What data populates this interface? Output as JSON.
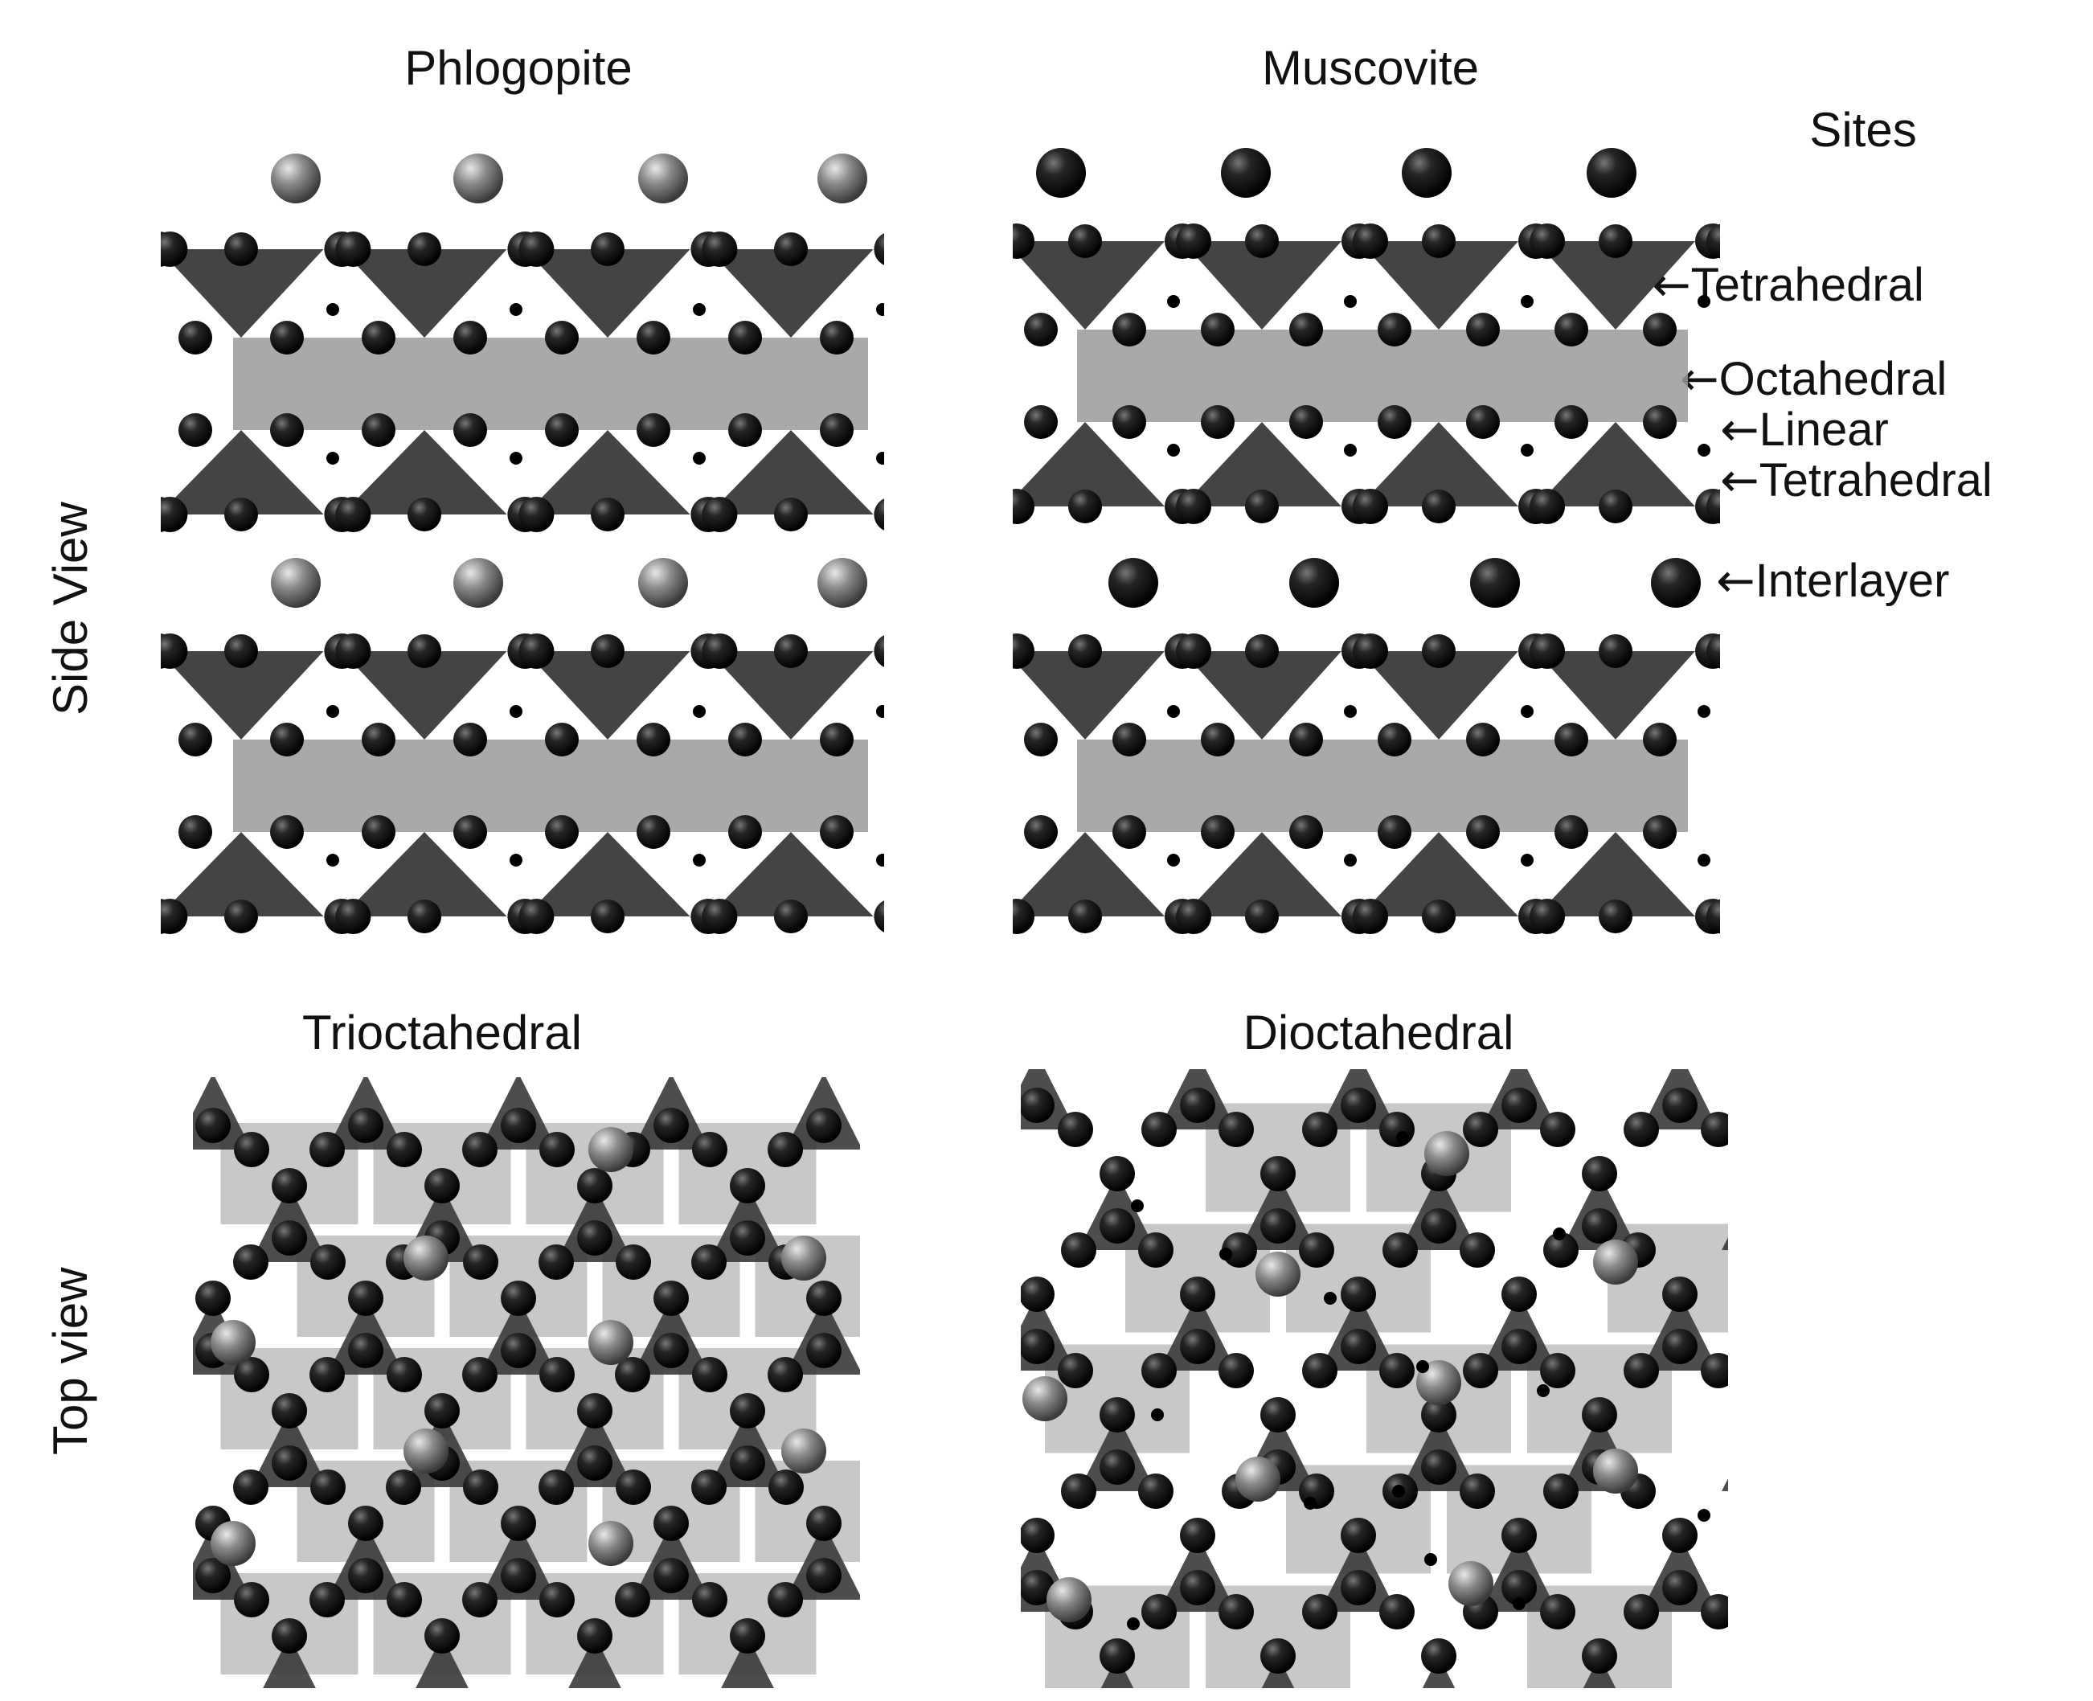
{
  "columns": {
    "phlogopite": "Phlogopite",
    "muscovite": "Muscovite",
    "trioctahedral": "Trioctahedral",
    "dioctahedral": "Dioctahedral"
  },
  "rows": {
    "side": "Side View",
    "top": "Top view"
  },
  "sites": {
    "title": "Sites",
    "arrow": "←",
    "items": [
      "Tetrahedral",
      "Octahedral",
      "Linear",
      "Tetrahedral",
      "Interlayer"
    ]
  },
  "colors": {
    "anion": "#262626",
    "tetra": "#3a3a3a",
    "octa": "#9a9a9a",
    "interlayer": "#8a8a8a",
    "hydrogen": "#000000"
  }
}
